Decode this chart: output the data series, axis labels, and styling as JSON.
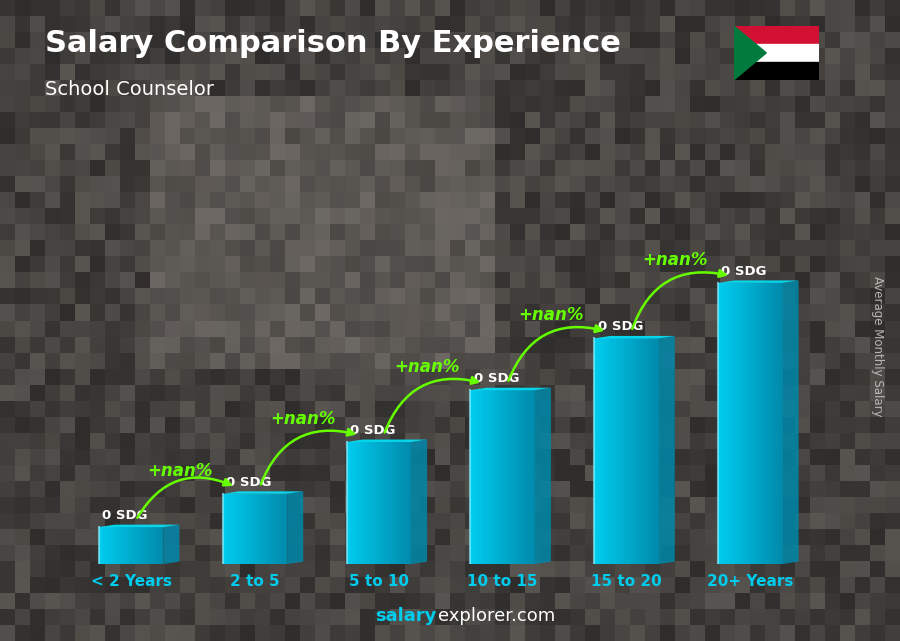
{
  "title": "Salary Comparison By Experience",
  "subtitle": "School Counselor",
  "ylabel": "Average Monthly Salary",
  "xlabel_categories": [
    "< 2 Years",
    "2 to 5",
    "5 to 10",
    "10 to 15",
    "15 to 20",
    "20+ Years"
  ],
  "bar_heights": [
    1.0,
    1.9,
    3.3,
    4.7,
    6.1,
    7.6
  ],
  "bar_color_face": "#00c8e8",
  "bar_color_side": "#0088aa",
  "bar_color_top": "#00e8ff",
  "bar_color_grad_left": "#00aacc",
  "bar_values": [
    "0 SDG",
    "0 SDG",
    "0 SDG",
    "0 SDG",
    "0 SDG",
    "0 SDG"
  ],
  "pct_labels": [
    "+nan%",
    "+nan%",
    "+nan%",
    "+nan%",
    "+nan%"
  ],
  "pct_color": "#66ff00",
  "watermark_salary": "salary",
  "watermark_explorer": "explorer.com",
  "title_color": "#ffffff",
  "subtitle_color": "#ffffff",
  "value_label_color": "#ffffff",
  "tick_label_color": "#00ccee",
  "watermark_salary_color": "#00ccee",
  "watermark_explorer_color": "#ffffff",
  "arrow_color": "#66ff00",
  "bg_color": "#3a3a3a",
  "flag_red": "#d21034",
  "flag_white": "#ffffff",
  "flag_black": "#000000",
  "flag_green": "#007a3d"
}
